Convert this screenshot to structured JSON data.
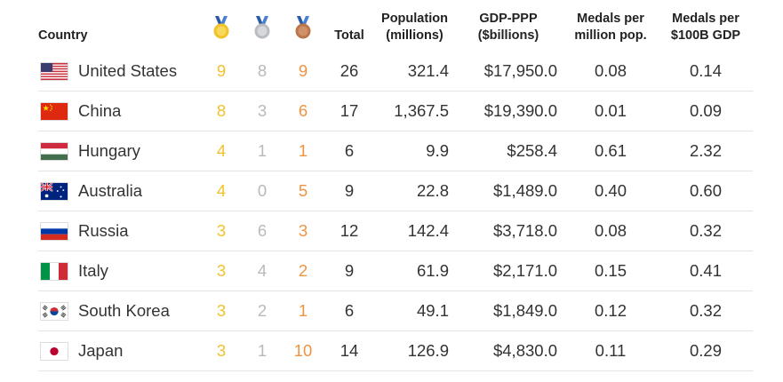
{
  "headers": {
    "country": "Country",
    "gold_icon": "gold-medal-icon",
    "silver_icon": "silver-medal-icon",
    "bronze_icon": "bronze-medal-icon",
    "total": "Total",
    "population_line1": "Population",
    "population_line2": "(millions)",
    "gdp_line1": "GDP-PPP",
    "gdp_line2": "($billions)",
    "per_million_line1": "Medals per",
    "per_million_line2": "million pop.",
    "per_gdp_line1": "Medals per",
    "per_gdp_line2": "$100B GDP"
  },
  "colors": {
    "gold": "#f2c22a",
    "silver": "#b9b9b9",
    "bronze": "#ee9340"
  },
  "rows": [
    {
      "flag": "us-flag-icon",
      "country": "United States",
      "gold": "9",
      "silver": "8",
      "bronze": "9",
      "total": "26",
      "population": "321.4",
      "gdp": "$17,950.0",
      "per_million": "0.08",
      "per_gdp": "0.14"
    },
    {
      "flag": "china-flag-icon",
      "country": "China",
      "gold": "8",
      "silver": "3",
      "bronze": "6",
      "total": "17",
      "population": "1,367.5",
      "gdp": "$19,390.0",
      "per_million": "0.01",
      "per_gdp": "0.09"
    },
    {
      "flag": "hungary-flag-icon",
      "country": "Hungary",
      "gold": "4",
      "silver": "1",
      "bronze": "1",
      "total": "6",
      "population": "9.9",
      "gdp": "$258.4",
      "per_million": "0.61",
      "per_gdp": "2.32"
    },
    {
      "flag": "australia-flag-icon",
      "country": "Australia",
      "gold": "4",
      "silver": "0",
      "bronze": "5",
      "total": "9",
      "population": "22.8",
      "gdp": "$1,489.0",
      "per_million": "0.40",
      "per_gdp": "0.60"
    },
    {
      "flag": "russia-flag-icon",
      "country": "Russia",
      "gold": "3",
      "silver": "6",
      "bronze": "3",
      "total": "12",
      "population": "142.4",
      "gdp": "$3,718.0",
      "per_million": "0.08",
      "per_gdp": "0.32"
    },
    {
      "flag": "italy-flag-icon",
      "country": "Italy",
      "gold": "3",
      "silver": "4",
      "bronze": "2",
      "total": "9",
      "population": "61.9",
      "gdp": "$2,171.0",
      "per_million": "0.15",
      "per_gdp": "0.41"
    },
    {
      "flag": "south-korea-flag-icon",
      "country": "South Korea",
      "gold": "3",
      "silver": "2",
      "bronze": "1",
      "total": "6",
      "population": "49.1",
      "gdp": "$1,849.0",
      "per_million": "0.12",
      "per_gdp": "0.32"
    },
    {
      "flag": "japan-flag-icon",
      "country": "Japan",
      "gold": "3",
      "silver": "1",
      "bronze": "10",
      "total": "14",
      "population": "126.9",
      "gdp": "$4,830.0",
      "per_million": "0.11",
      "per_gdp": "0.29"
    }
  ]
}
